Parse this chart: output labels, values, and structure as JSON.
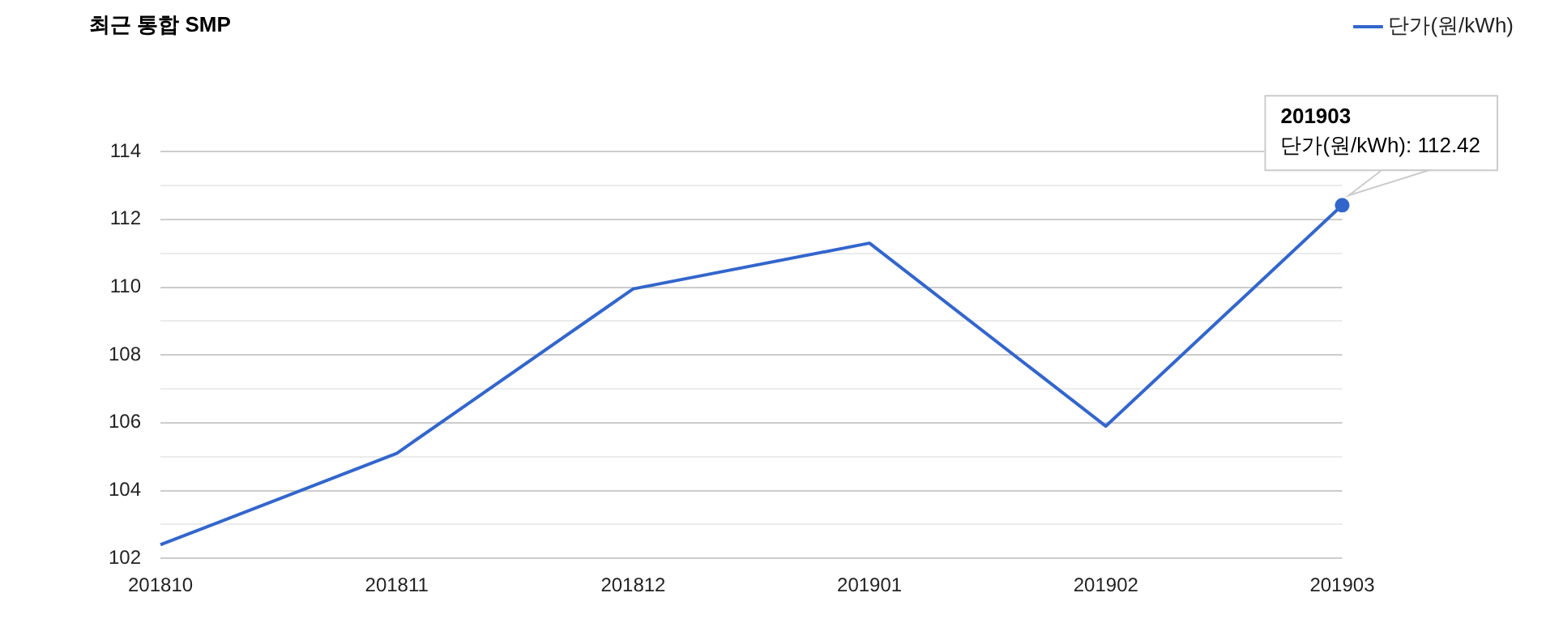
{
  "chart_data": {
    "type": "line",
    "title": "최근 통합 SMP",
    "categories": [
      "201810",
      "201811",
      "201812",
      "201901",
      "201902",
      "201903"
    ],
    "series": [
      {
        "name": "단가(원/kWh)",
        "color": "#3366cc",
        "values": [
          102.4,
          105.1,
          109.95,
          111.3,
          105.9,
          112.42
        ]
      }
    ],
    "ylim": [
      102,
      114
    ],
    "yticks": [
      102,
      {
        "value": 103,
        "label": null
      },
      104,
      {
        "value": 105,
        "label": null
      },
      106,
      {
        "value": 107,
        "label": null
      },
      108,
      {
        "value": 109,
        "label": null
      },
      110,
      {
        "value": 111,
        "label": null
      },
      112,
      {
        "value": 113,
        "label": null
      },
      114
    ],
    "grid": "y",
    "legend": "right",
    "marker": "none",
    "line_style": "solid",
    "annotations": [
      {
        "text": "201903\n단가(원/kWh): 112.42",
        "x": "201903",
        "y": 112.42
      }
    ]
  }
}
